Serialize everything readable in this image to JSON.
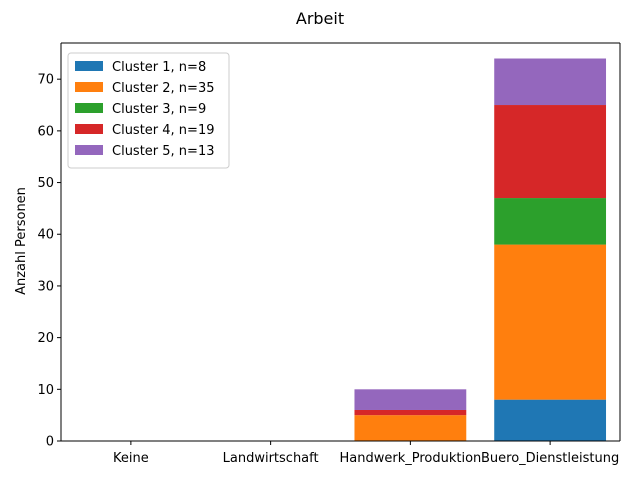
{
  "chart_data": {
    "type": "bar",
    "stacked": true,
    "title": "Arbeit",
    "xlabel": "",
    "ylabel": "Anzahl Personen",
    "categories": [
      "Keine",
      "Landwirtschaft",
      "Handwerk_Produktion",
      "Buero_Dienstleistung"
    ],
    "ylim": [
      0,
      77
    ],
    "yticks": [
      0,
      10,
      20,
      30,
      40,
      50,
      60,
      70
    ],
    "grid": false,
    "legend_position": "top-left",
    "series": [
      {
        "name": "Cluster 1, n=8",
        "color": "#1f77b4",
        "values": [
          0,
          0,
          0,
          8
        ]
      },
      {
        "name": "Cluster 2, n=35",
        "color": "#ff7f0e",
        "values": [
          0,
          0,
          5,
          30
        ]
      },
      {
        "name": "Cluster 3, n=9",
        "color": "#2ca02c",
        "values": [
          0,
          0,
          0,
          9
        ]
      },
      {
        "name": "Cluster 4, n=19",
        "color": "#d62728",
        "values": [
          0,
          0,
          1,
          18
        ]
      },
      {
        "name": "Cluster 5, n=13",
        "color": "#9467bd",
        "values": [
          0,
          0,
          4,
          9
        ]
      }
    ]
  }
}
